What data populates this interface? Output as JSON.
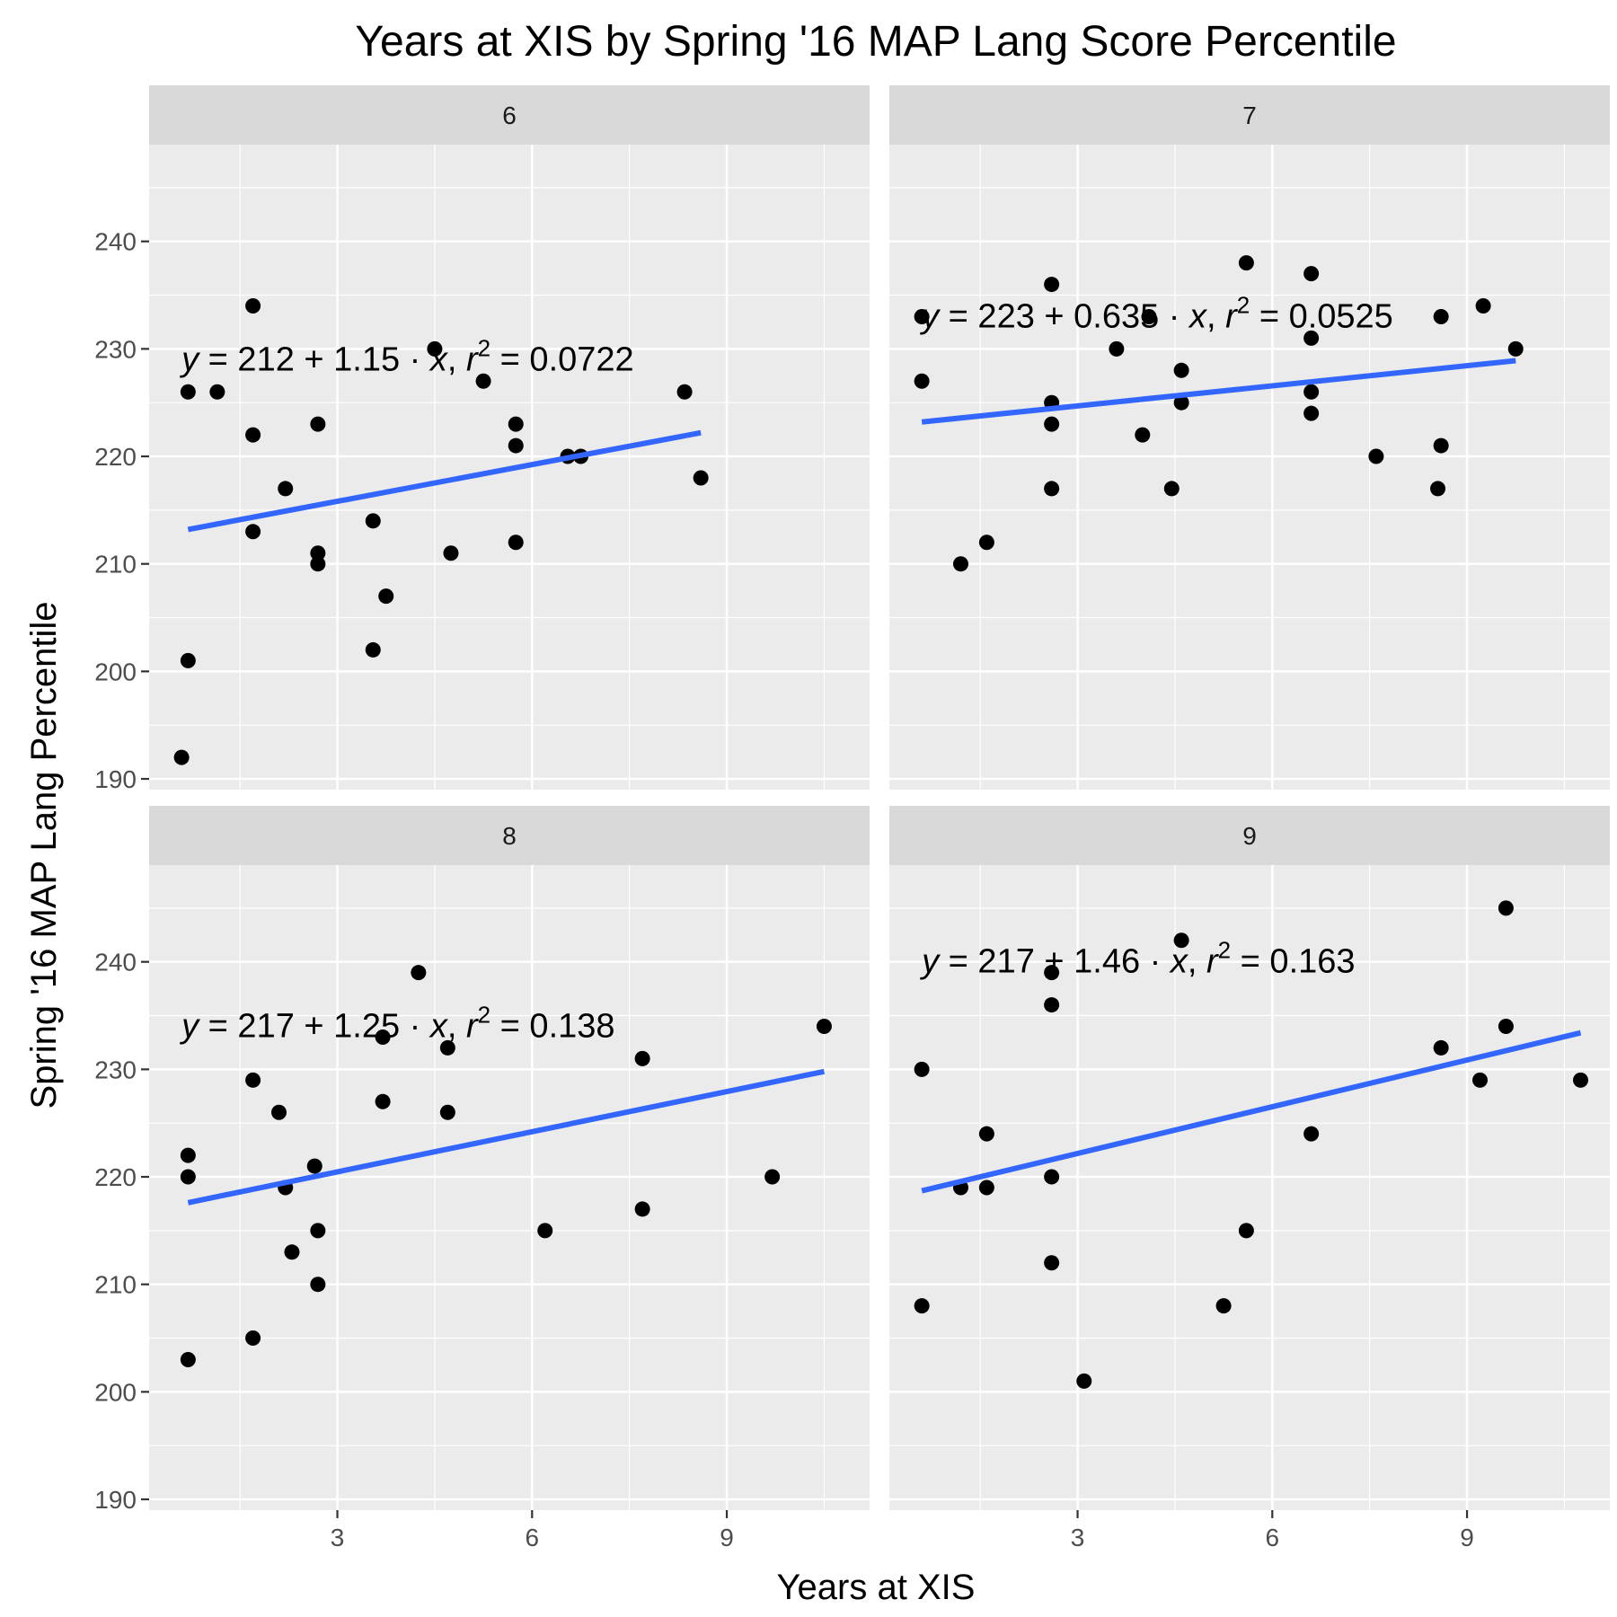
{
  "chart_data": {
    "type": "scatter",
    "title": "Years at XIS by Spring '16 MAP Lang Score Percentile",
    "xlabel": "Years at XIS",
    "ylabel": "Spring '16 MAP Lang Percentile",
    "xlim": [
      0.1,
      11.2
    ],
    "ylim": [
      189,
      249
    ],
    "x_ticks": [
      3,
      6,
      9
    ],
    "y_ticks": [
      190,
      200,
      210,
      220,
      230,
      240
    ],
    "grid": true,
    "colors": {
      "panel_bg": "#ebebeb",
      "strip_bg": "#d9d9d9",
      "grid": "#ffffff",
      "points": "#000000",
      "fit_line": "#3366ff"
    },
    "facets": [
      {
        "label": "6",
        "equation": {
          "intercept": "212",
          "slope": "1.15",
          "r2": "0.0722",
          "x": 0.6,
          "y": 228
        },
        "fit": {
          "x": [
            0.7,
            8.6
          ],
          "y": [
            213.2,
            222.2
          ]
        },
        "points": [
          {
            "x": 0.6,
            "y": 192
          },
          {
            "x": 0.7,
            "y": 201
          },
          {
            "x": 0.7,
            "y": 226
          },
          {
            "x": 1.15,
            "y": 226
          },
          {
            "x": 1.7,
            "y": 234
          },
          {
            "x": 1.7,
            "y": 222
          },
          {
            "x": 1.7,
            "y": 213
          },
          {
            "x": 2.2,
            "y": 217
          },
          {
            "x": 2.7,
            "y": 223
          },
          {
            "x": 2.7,
            "y": 211
          },
          {
            "x": 2.7,
            "y": 210
          },
          {
            "x": 3.55,
            "y": 214
          },
          {
            "x": 3.55,
            "y": 202
          },
          {
            "x": 3.75,
            "y": 207
          },
          {
            "x": 4.5,
            "y": 230
          },
          {
            "x": 4.75,
            "y": 211
          },
          {
            "x": 5.25,
            "y": 227
          },
          {
            "x": 5.75,
            "y": 223
          },
          {
            "x": 5.75,
            "y": 221
          },
          {
            "x": 5.75,
            "y": 212
          },
          {
            "x": 6.55,
            "y": 220
          },
          {
            "x": 6.75,
            "y": 220
          },
          {
            "x": 8.35,
            "y": 226
          },
          {
            "x": 8.6,
            "y": 218
          }
        ]
      },
      {
        "label": "7",
        "equation": {
          "intercept": "223",
          "slope": "0.635",
          "r2": "0.0525",
          "x": 0.6,
          "y": 232
        },
        "fit": {
          "x": [
            0.6,
            9.75
          ],
          "y": [
            223.2,
            228.9
          ]
        },
        "points": [
          {
            "x": 0.6,
            "y": 233
          },
          {
            "x": 0.6,
            "y": 227
          },
          {
            "x": 1.2,
            "y": 210
          },
          {
            "x": 1.6,
            "y": 212
          },
          {
            "x": 2.6,
            "y": 236
          },
          {
            "x": 2.6,
            "y": 225
          },
          {
            "x": 2.6,
            "y": 223
          },
          {
            "x": 2.6,
            "y": 217
          },
          {
            "x": 3.6,
            "y": 230
          },
          {
            "x": 4.0,
            "y": 222
          },
          {
            "x": 4.1,
            "y": 233
          },
          {
            "x": 4.45,
            "y": 217
          },
          {
            "x": 4.6,
            "y": 228
          },
          {
            "x": 4.6,
            "y": 225
          },
          {
            "x": 5.6,
            "y": 238
          },
          {
            "x": 6.6,
            "y": 237
          },
          {
            "x": 6.6,
            "y": 231
          },
          {
            "x": 6.6,
            "y": 226
          },
          {
            "x": 6.6,
            "y": 224
          },
          {
            "x": 7.6,
            "y": 220
          },
          {
            "x": 8.6,
            "y": 233
          },
          {
            "x": 8.6,
            "y": 221
          },
          {
            "x": 8.55,
            "y": 217
          },
          {
            "x": 9.25,
            "y": 234
          },
          {
            "x": 9.75,
            "y": 230
          }
        ]
      },
      {
        "label": "8",
        "equation": {
          "intercept": "217",
          "slope": "1.25",
          "r2": "0.138",
          "x": 0.6,
          "y": 233
        },
        "fit": {
          "x": [
            0.7,
            10.5
          ],
          "y": [
            217.6,
            229.8
          ]
        },
        "points": [
          {
            "x": 0.7,
            "y": 222
          },
          {
            "x": 0.7,
            "y": 220
          },
          {
            "x": 0.7,
            "y": 203
          },
          {
            "x": 1.7,
            "y": 229
          },
          {
            "x": 1.7,
            "y": 205
          },
          {
            "x": 2.1,
            "y": 226
          },
          {
            "x": 2.2,
            "y": 219
          },
          {
            "x": 2.3,
            "y": 213
          },
          {
            "x": 2.65,
            "y": 221
          },
          {
            "x": 2.7,
            "y": 215
          },
          {
            "x": 2.7,
            "y": 210
          },
          {
            "x": 3.7,
            "y": 233
          },
          {
            "x": 3.7,
            "y": 227
          },
          {
            "x": 4.25,
            "y": 239
          },
          {
            "x": 4.7,
            "y": 232
          },
          {
            "x": 4.7,
            "y": 226
          },
          {
            "x": 6.2,
            "y": 215
          },
          {
            "x": 7.7,
            "y": 231
          },
          {
            "x": 7.7,
            "y": 217
          },
          {
            "x": 9.7,
            "y": 220
          },
          {
            "x": 10.5,
            "y": 234
          }
        ]
      },
      {
        "label": "9",
        "equation": {
          "intercept": "217",
          "slope": "1.46",
          "r2": "0.163",
          "x": 0.6,
          "y": 239
        },
        "fit": {
          "x": [
            0.6,
            10.75
          ],
          "y": [
            218.7,
            233.4
          ]
        },
        "points": [
          {
            "x": 0.6,
            "y": 230
          },
          {
            "x": 0.6,
            "y": 208
          },
          {
            "x": 1.2,
            "y": 219
          },
          {
            "x": 1.6,
            "y": 224
          },
          {
            "x": 1.6,
            "y": 219
          },
          {
            "x": 2.6,
            "y": 239
          },
          {
            "x": 2.6,
            "y": 236
          },
          {
            "x": 2.6,
            "y": 220
          },
          {
            "x": 2.6,
            "y": 212
          },
          {
            "x": 3.1,
            "y": 201
          },
          {
            "x": 4.6,
            "y": 242
          },
          {
            "x": 5.25,
            "y": 208
          },
          {
            "x": 5.6,
            "y": 215
          },
          {
            "x": 6.6,
            "y": 224
          },
          {
            "x": 8.6,
            "y": 232
          },
          {
            "x": 9.2,
            "y": 229
          },
          {
            "x": 9.6,
            "y": 245
          },
          {
            "x": 9.6,
            "y": 234
          },
          {
            "x": 10.75,
            "y": 229
          }
        ]
      }
    ]
  }
}
